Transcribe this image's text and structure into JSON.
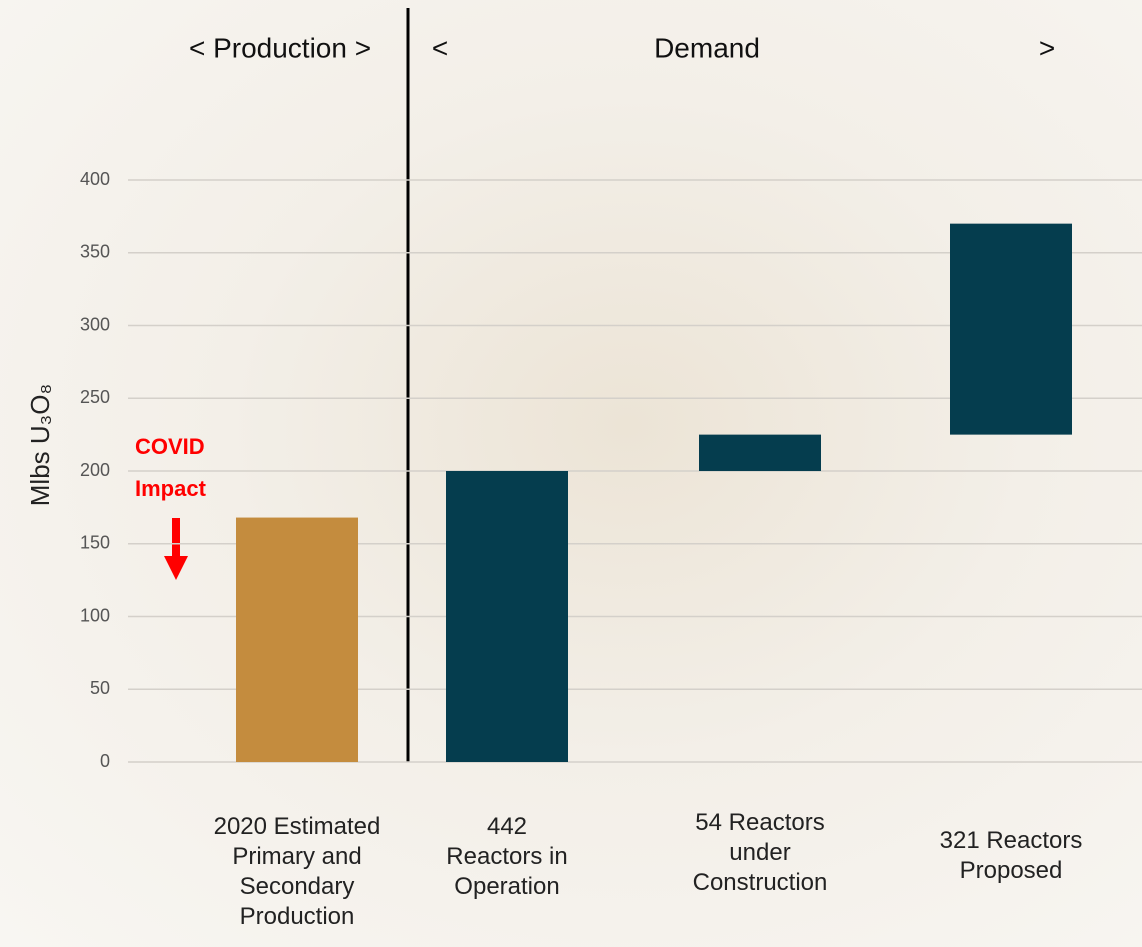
{
  "chart_data": {
    "type": "waterfall",
    "ylabel": "Mlbs U₃O₈",
    "ylim": [
      0,
      400
    ],
    "yticks": [
      0,
      50,
      100,
      150,
      200,
      250,
      300,
      350,
      400
    ],
    "grid": true,
    "annotation": [
      "COVID",
      "Impact"
    ],
    "sections": [
      {
        "labels": [
          "< Production >"
        ],
        "color": "#c48c3e",
        "categories": [
          "2020 Estimated\nPrimary and\nSecondary\nProduction"
        ],
        "values": [
          168
        ]
      },
      {
        "labels": [
          "<",
          "Demand",
          ">"
        ],
        "color": "#053d4e",
        "categories": [
          "442\nReactors in\nOperation",
          "54 Reactors\nunder\nConstruction",
          "321 Reactors\nProposed"
        ],
        "values": [
          200,
          25,
          145
        ]
      }
    ]
  }
}
